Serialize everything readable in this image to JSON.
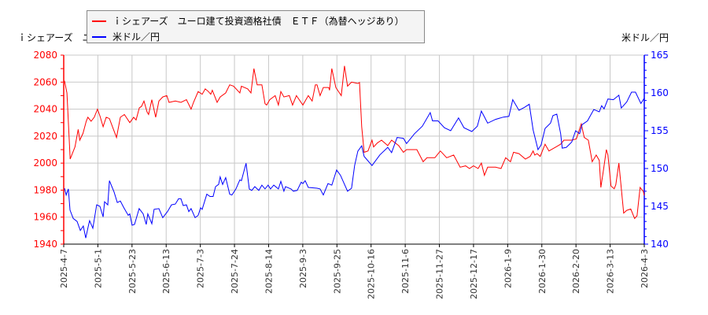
{
  "chart_data": {
    "type": "line",
    "title": "",
    "left_axis_title": "ｉシェアーズ　ユーロ建て投資適格社債　ＥＴＦ（為替ヘッジあり）",
    "left_axis_title_visible": "ｉシェアーズ　ユ",
    "right_axis_title": "米ドル／円",
    "xlim_days": [
      0,
      361
    ],
    "x_tick_labels": [
      "2025-4-7",
      "2025-5-1",
      "2025-5-23",
      "2025-6-13",
      "2025-7-3",
      "2025-7-24",
      "2025-8-14",
      "2025-9-3",
      "2025-9-25",
      "2025-10-16",
      "2025-11-6",
      "2025-11-27",
      "2025-12-17",
      "2026-1-9",
      "2026-1-30",
      "2026-2-20",
      "2026-3-13",
      "2026-4-3"
    ],
    "y_left": {
      "lim": [
        1940,
        2080
      ],
      "ticks": [
        1940,
        1960,
        1980,
        2000,
        2020,
        2040,
        2060,
        2080
      ],
      "color": "#ff0000"
    },
    "y_right": {
      "lim": [
        140,
        165
      ],
      "ticks": [
        140,
        145,
        150,
        155,
        160,
        165
      ],
      "color": "#0000ff"
    },
    "grid": true,
    "legend_placement": "top",
    "series": [
      {
        "name": "ｉシェアーズ　ユーロ建て投資適格社債　ＥＴＦ（為替ヘッジあり）",
        "axis": "left",
        "color": "#ff0000",
        "points": [
          [
            0.5,
            2061
          ],
          [
            2,
            2052
          ],
          [
            4,
            2003
          ],
          [
            7,
            2012
          ],
          [
            9,
            2025
          ],
          [
            10,
            2017
          ],
          [
            12,
            2022
          ],
          [
            14,
            2031
          ],
          [
            15,
            2034
          ],
          [
            17,
            2031
          ],
          [
            19,
            2034
          ],
          [
            21,
            2040
          ],
          [
            22.5,
            2035
          ],
          [
            24.5,
            2027
          ],
          [
            26.4,
            2034
          ],
          [
            28.4,
            2033
          ],
          [
            32.8,
            2019
          ],
          [
            35.2,
            2034
          ],
          [
            37.7,
            2036
          ],
          [
            41.1,
            2030
          ],
          [
            43.5,
            2034
          ],
          [
            45,
            2032
          ],
          [
            47,
            2041
          ],
          [
            48.4,
            2042
          ],
          [
            49.9,
            2046
          ],
          [
            51.8,
            2038
          ],
          [
            52.8,
            2036
          ],
          [
            54.8,
            2047
          ],
          [
            57.2,
            2034
          ],
          [
            59.2,
            2046
          ],
          [
            61.6,
            2049
          ],
          [
            64.1,
            2050
          ],
          [
            65.5,
            2045
          ],
          [
            69.4,
            2046
          ],
          [
            72.9,
            2045
          ],
          [
            76.3,
            2047
          ],
          [
            79.2,
            2040
          ],
          [
            80.7,
            2045
          ],
          [
            83.6,
            2053
          ],
          [
            86.1,
            2051
          ],
          [
            88,
            2055
          ],
          [
            90,
            2053
          ],
          [
            91.4,
            2051
          ],
          [
            92.4,
            2054
          ],
          [
            95.4,
            2045
          ],
          [
            97.3,
            2049
          ],
          [
            100.7,
            2052
          ],
          [
            103.2,
            2058
          ],
          [
            105.6,
            2057
          ],
          [
            109.5,
            2052
          ],
          [
            110.5,
            2057
          ],
          [
            114.4,
            2055
          ],
          [
            116.4,
            2052
          ],
          [
            118.3,
            2070
          ],
          [
            120.3,
            2058
          ],
          [
            123.2,
            2058
          ],
          [
            125.2,
            2044
          ],
          [
            126.2,
            2043
          ],
          [
            128.1,
            2047
          ],
          [
            131.5,
            2050
          ],
          [
            133.5,
            2043
          ],
          [
            135,
            2053
          ],
          [
            136.9,
            2049
          ],
          [
            140.3,
            2050
          ],
          [
            142.3,
            2043
          ],
          [
            144.7,
            2050
          ],
          [
            148.7,
            2043
          ],
          [
            152.1,
            2050
          ],
          [
            154.5,
            2046
          ],
          [
            156.5,
            2058
          ],
          [
            157.5,
            2058
          ],
          [
            159.4,
            2050
          ],
          [
            161.4,
            2056
          ],
          [
            164.8,
            2056
          ],
          [
            165.3,
            2054
          ],
          [
            166.7,
            2070
          ],
          [
            169.2,
            2056
          ],
          [
            172.6,
            2050
          ],
          [
            174.6,
            2072
          ],
          [
            176.5,
            2057
          ],
          [
            179,
            2060
          ],
          [
            182.9,
            2059
          ],
          [
            183.9,
            2059.7
          ],
          [
            185.3,
            2027
          ],
          [
            186.8,
            2008
          ],
          [
            189.2,
            2009
          ],
          [
            191.7,
            2017
          ],
          [
            192.7,
            2012
          ],
          [
            195.1,
            2015
          ],
          [
            197.6,
            2017
          ],
          [
            201.5,
            2013
          ],
          [
            203.9,
            2017
          ],
          [
            208.3,
            2013
          ],
          [
            211.2,
            2008
          ],
          [
            213.2,
            2010
          ],
          [
            219.6,
            2010
          ],
          [
            223.5,
            2001
          ],
          [
            225.9,
            2004
          ],
          [
            230.8,
            2004
          ],
          [
            234.2,
            2009
          ],
          [
            238.1,
            2004
          ],
          [
            242.5,
            2006
          ],
          [
            246.5,
            1997
          ],
          [
            249.9,
            1998
          ],
          [
            252.3,
            1996
          ],
          [
            254.8,
            1998
          ],
          [
            257.7,
            1996
          ],
          [
            259.7,
            2000
          ],
          [
            261.6,
            1991
          ],
          [
            263.6,
            1997
          ],
          [
            268.5,
            1997
          ],
          [
            271.9,
            1996
          ],
          [
            274.8,
            2004
          ],
          [
            277.8,
            2001
          ],
          [
            279.7,
            2008
          ],
          [
            283.1,
            2007
          ],
          [
            287.1,
            2003
          ],
          [
            290,
            2005
          ],
          [
            291.9,
            2009
          ],
          [
            292.9,
            2006
          ],
          [
            294.4,
            2007
          ],
          [
            296.3,
            2005
          ],
          [
            299.3,
            2014
          ],
          [
            301.7,
            2009
          ],
          [
            306.1,
            2012
          ],
          [
            309,
            2014
          ],
          [
            311,
            2017
          ],
          [
            315.9,
            2017
          ],
          [
            318.8,
            2018
          ],
          [
            321.8,
            2029
          ],
          [
            323.7,
            2019
          ],
          [
            326.2,
            2017
          ],
          [
            328.6,
            2001
          ],
          [
            331.1,
            2006
          ],
          [
            333,
            2002
          ],
          [
            334,
            1982
          ],
          [
            335.5,
            1994
          ],
          [
            337.4,
            2010
          ],
          [
            338.4,
            2006
          ],
          [
            340.3,
            1983
          ],
          [
            342.3,
            1981
          ],
          [
            343.3,
            1984
          ],
          [
            345.2,
            2000
          ],
          [
            348.2,
            1963
          ],
          [
            350.1,
            1965
          ],
          [
            352.6,
            1966
          ],
          [
            355,
            1959
          ],
          [
            356.5,
            1961
          ],
          [
            358.4,
            1982
          ],
          [
            360.4,
            1979
          ],
          [
            361,
            1976
          ]
        ]
      },
      {
        "name": "米ドル／円",
        "axis": "right",
        "color": "#0000ff",
        "points": [
          [
            0.5,
            147.4
          ],
          [
            1.5,
            146.5
          ],
          [
            2.9,
            147.3
          ],
          [
            3.9,
            144.5
          ],
          [
            5.9,
            143.4
          ],
          [
            8.3,
            143
          ],
          [
            10.3,
            141.8
          ],
          [
            12.2,
            142.4
          ],
          [
            13.7,
            140.8
          ],
          [
            15.2,
            142.3
          ],
          [
            16.1,
            143.1
          ],
          [
            18.1,
            142.1
          ],
          [
            20.5,
            145.2
          ],
          [
            22.5,
            145
          ],
          [
            24.5,
            143.6
          ],
          [
            25.4,
            145.6
          ],
          [
            27.4,
            145.2
          ],
          [
            28.4,
            148.4
          ],
          [
            31.3,
            146.9
          ],
          [
            33.3,
            145.5
          ],
          [
            35.2,
            145.7
          ],
          [
            37.2,
            144.9
          ],
          [
            40.1,
            143.8
          ],
          [
            41.1,
            144
          ],
          [
            42.5,
            142.5
          ],
          [
            44,
            142.6
          ],
          [
            46.9,
            144.7
          ],
          [
            49.4,
            144
          ],
          [
            51.3,
            142.6
          ],
          [
            52.3,
            144
          ],
          [
            54.8,
            142.7
          ],
          [
            56.2,
            144.6
          ],
          [
            59.2,
            144.7
          ],
          [
            61.6,
            143.5
          ],
          [
            64.5,
            144.3
          ],
          [
            67,
            145.2
          ],
          [
            69.4,
            145.3
          ],
          [
            71.4,
            146
          ],
          [
            72.9,
            146
          ],
          [
            74.3,
            145.1
          ],
          [
            76.3,
            145.2
          ],
          [
            77.8,
            144.3
          ],
          [
            79.2,
            144.7
          ],
          [
            81.7,
            143.5
          ],
          [
            83.6,
            143.8
          ],
          [
            85.1,
            144.8
          ],
          [
            86.1,
            144.6
          ],
          [
            89,
            146.6
          ],
          [
            91,
            146.3
          ],
          [
            92.9,
            146.3
          ],
          [
            94.4,
            147.6
          ],
          [
            96.3,
            147.9
          ],
          [
            97.3,
            148.9
          ],
          [
            98.8,
            147.9
          ],
          [
            100.7,
            148.8
          ],
          [
            103.2,
            146.6
          ],
          [
            104.6,
            146.5
          ],
          [
            107.1,
            147.3
          ],
          [
            109.5,
            148.5
          ],
          [
            110.5,
            148.4
          ],
          [
            113.4,
            150.7
          ],
          [
            115.4,
            147.3
          ],
          [
            116.9,
            147.1
          ],
          [
            118.8,
            147.6
          ],
          [
            121.3,
            147.1
          ],
          [
            123.2,
            147.8
          ],
          [
            125.2,
            147.3
          ],
          [
            127.1,
            147.8
          ],
          [
            128.6,
            147.3
          ],
          [
            130.6,
            147.8
          ],
          [
            133.5,
            147.3
          ],
          [
            135,
            148.3
          ],
          [
            136.9,
            147
          ],
          [
            137.9,
            147.6
          ],
          [
            141.3,
            147.3
          ],
          [
            142.8,
            147
          ],
          [
            145.2,
            147.1
          ],
          [
            147.7,
            148.2
          ],
          [
            148.7,
            148
          ],
          [
            150.1,
            148.4
          ],
          [
            152.1,
            147.5
          ],
          [
            157.5,
            147.4
          ],
          [
            159.4,
            147.3
          ],
          [
            161.4,
            146.5
          ],
          [
            164.3,
            148
          ],
          [
            166.7,
            147.8
          ],
          [
            169.7,
            149.8
          ],
          [
            172.1,
            149.1
          ],
          [
            176.5,
            147
          ],
          [
            179,
            147.4
          ],
          [
            180.9,
            150.4
          ],
          [
            182.9,
            152.3
          ],
          [
            185.3,
            153
          ],
          [
            186.8,
            151.6
          ],
          [
            191.7,
            150.4
          ],
          [
            196.6,
            151.8
          ],
          [
            201.5,
            152.8
          ],
          [
            203.9,
            152.1
          ],
          [
            207.3,
            154.1
          ],
          [
            211.2,
            154
          ],
          [
            213.2,
            153.3
          ],
          [
            218.1,
            154.6
          ],
          [
            223,
            155.6
          ],
          [
            227.9,
            157.4
          ],
          [
            229.3,
            156.3
          ],
          [
            232.8,
            156.3
          ],
          [
            236.7,
            155.4
          ],
          [
            240.6,
            155
          ],
          [
            245.5,
            156.7
          ],
          [
            248.9,
            155.4
          ],
          [
            253.8,
            154.9
          ],
          [
            257.2,
            155.6
          ],
          [
            259.7,
            157.6
          ],
          [
            263.6,
            156
          ],
          [
            268.5,
            156.5
          ],
          [
            273.4,
            156.8
          ],
          [
            276.8,
            156.9
          ],
          [
            279.2,
            159.1
          ],
          [
            283.1,
            157.7
          ],
          [
            286.6,
            158.1
          ],
          [
            289.5,
            158.5
          ],
          [
            291.9,
            155.1
          ],
          [
            294.9,
            152.5
          ],
          [
            296.8,
            153.1
          ],
          [
            299.3,
            155.3
          ],
          [
            302.7,
            156
          ],
          [
            304.2,
            157
          ],
          [
            306.6,
            157.2
          ],
          [
            309,
            154.6
          ],
          [
            310,
            152.7
          ],
          [
            312.5,
            152.8
          ],
          [
            315.9,
            153.5
          ],
          [
            318.3,
            155
          ],
          [
            320.8,
            154.6
          ],
          [
            322.3,
            155.8
          ],
          [
            325.7,
            156.3
          ],
          [
            329.6,
            157.8
          ],
          [
            333,
            157.5
          ],
          [
            334.5,
            158.3
          ],
          [
            336,
            157.9
          ],
          [
            338.4,
            159.2
          ],
          [
            341.8,
            159.1
          ],
          [
            345.2,
            159.7
          ],
          [
            346.7,
            158
          ],
          [
            350.1,
            158.8
          ],
          [
            353.1,
            160.1
          ],
          [
            355.5,
            160.1
          ],
          [
            358.9,
            158.6
          ],
          [
            361,
            159.3
          ]
        ]
      }
    ]
  }
}
